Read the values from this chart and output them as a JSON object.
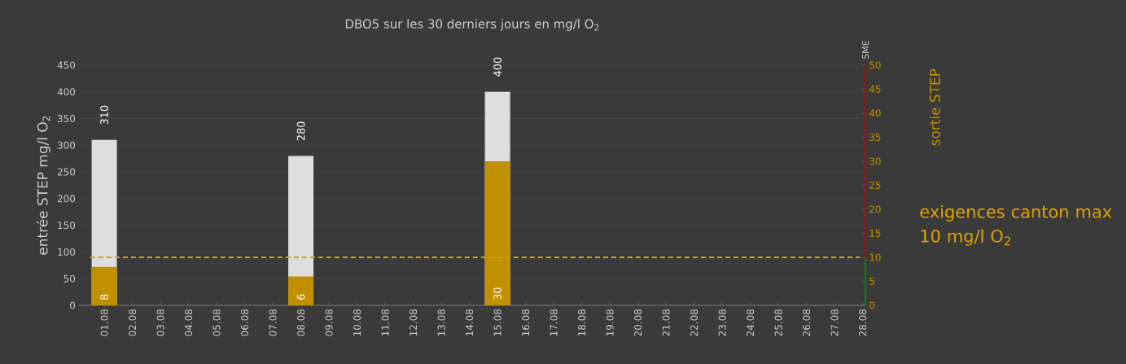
{
  "chart_data": {
    "type": "bar",
    "title": "DBO5 sur les 30 derniers jours en mg/l O$_{2}$",
    "ylabel": "entrée STEP mg/l O$_{2}$",
    "y2label": "sortie STEP",
    "categories": [
      "01.08",
      "02.08",
      "03.08",
      "04.08",
      "05.08",
      "06.08",
      "07.08",
      "08.08",
      "09.08",
      "10.08",
      "11.08",
      "12.08",
      "13.08",
      "14.08",
      "15.08",
      "16.08",
      "17.08",
      "18.08",
      "19.08",
      "20.08",
      "21.08",
      "22.08",
      "23.08",
      "24.08",
      "25.08",
      "26.08",
      "27.08",
      "28.08"
    ],
    "series": [
      {
        "color": "#dedede",
        "values": [
          310,
          null,
          null,
          null,
          null,
          null,
          null,
          280,
          null,
          null,
          null,
          null,
          null,
          null,
          400,
          null,
          null,
          null,
          null,
          null,
          null,
          null,
          null,
          null,
          null,
          null,
          null,
          null
        ]
      },
      {
        "color": "#c09000",
        "axis": "y2",
        "values": [
          8,
          null,
          null,
          null,
          null,
          null,
          null,
          6,
          null,
          null,
          null,
          null,
          null,
          null,
          30,
          null,
          null,
          null,
          null,
          null,
          null,
          null,
          null,
          null,
          null,
          null,
          null,
          null
        ]
      }
    ],
    "ylim": [
      0,
      450
    ],
    "yticks": [
      0,
      50,
      100,
      150,
      200,
      250,
      300,
      350,
      400,
      450
    ],
    "y2lim": [
      0,
      50
    ],
    "y2ticks": [
      0,
      5,
      10,
      15,
      20,
      25,
      30,
      35,
      40,
      45,
      50
    ],
    "grid": "y",
    "data_labels": true,
    "ref_lines": [
      {
        "axis": "y2",
        "value": 10,
        "label": "exigences canton max 10 mg/l O$_{2}$",
        "color": "#e0a000",
        "line_style": "dashed"
      }
    ],
    "annotations": [
      "SME"
    ]
  }
}
